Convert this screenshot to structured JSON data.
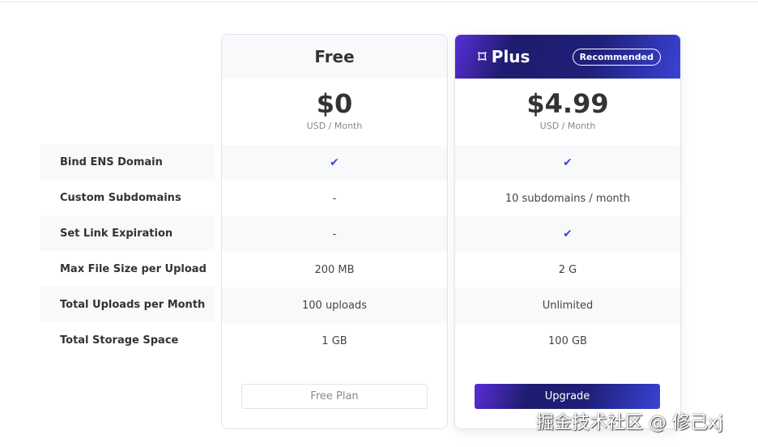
{
  "features": [
    "Bind ENS Domain",
    "Custom Subdomains",
    "Set Link Expiration",
    "Max File Size per Upload",
    "Total Uploads per Month",
    "Total Storage Space"
  ],
  "plans": [
    {
      "name": "Free",
      "price": "$0",
      "unit": "USD / Month",
      "values": [
        "check",
        "-",
        "-",
        "200 MB",
        "100 uploads",
        "1 GB"
      ],
      "button": "Free Plan"
    },
    {
      "name": "Plus",
      "badge": "Recommended",
      "price": "$4.99",
      "unit": "USD / Month",
      "values": [
        "check",
        "10 subdomains / month",
        "check",
        "2 G",
        "Unlimited",
        "100 GB"
      ],
      "button": "Upgrade"
    }
  ],
  "watermark": "掘金技术社区 @ 修己xj",
  "colors": {
    "accent": "#4a3fd6",
    "gradient_start": "#5a2ed8",
    "gradient_mid": "#1e1f78",
    "gradient_end": "#3a43d6"
  }
}
